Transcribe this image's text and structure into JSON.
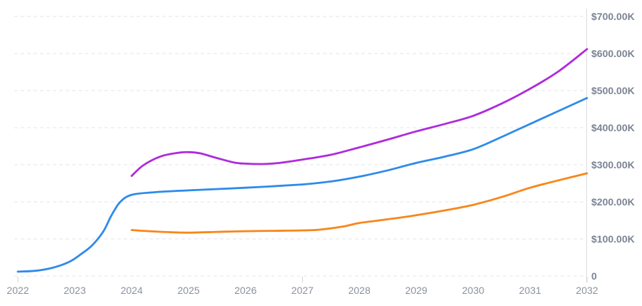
{
  "chart_data": {
    "type": "line",
    "title": "",
    "legend": "none",
    "grid": "horizontal dashed gridlines only",
    "y_axis": {
      "side": "right",
      "labels": [
        "$700.00K",
        "$600.00K",
        "$500.00K",
        "$400.00K",
        "$300.00K",
        "$200.00K",
        "$100.00K",
        "0"
      ],
      "values": [
        700000,
        600000,
        500000,
        400000,
        300000,
        200000,
        100000,
        0
      ],
      "lim": [
        0,
        700000
      ],
      "label_color": "#7c8494"
    },
    "x_axis": {
      "labels": [
        "2022",
        "2023",
        "2024",
        "2025",
        "2026",
        "2027",
        "2028",
        "2029",
        "2030",
        "2031",
        "2032"
      ],
      "values": [
        2022,
        2023,
        2024,
        2025,
        2026,
        2027,
        2028,
        2029,
        2030,
        2031,
        2032
      ],
      "major_ticks": [
        2022,
        2027,
        2032
      ],
      "lim": [
        2022,
        2032
      ],
      "label_color": "#8b919e"
    },
    "series": [
      {
        "name": "orange-line",
        "color": "#f8861b",
        "points": [
          [
            2024,
            124000
          ],
          [
            2024.3,
            121000
          ],
          [
            2024.7,
            118000
          ],
          [
            2025,
            117000
          ],
          [
            2025.5,
            119000
          ],
          [
            2026,
            121000
          ],
          [
            2026.5,
            122000
          ],
          [
            2027,
            123000
          ],
          [
            2027.3,
            125000
          ],
          [
            2027.7,
            133000
          ],
          [
            2028,
            143000
          ],
          [
            2028.5,
            153000
          ],
          [
            2029,
            164000
          ],
          [
            2029.5,
            177000
          ],
          [
            2030,
            192000
          ],
          [
            2030.5,
            213000
          ],
          [
            2031,
            238000
          ],
          [
            2031.5,
            258000
          ],
          [
            2032,
            277000
          ]
        ]
      },
      {
        "name": "blue-line",
        "color": "#2e8be9",
        "points": [
          [
            2022,
            12000
          ],
          [
            2022.3,
            14000
          ],
          [
            2022.6,
            22000
          ],
          [
            2022.9,
            38000
          ],
          [
            2023.1,
            58000
          ],
          [
            2023.3,
            82000
          ],
          [
            2023.5,
            120000
          ],
          [
            2023.65,
            165000
          ],
          [
            2023.8,
            200000
          ],
          [
            2024,
            219000
          ],
          [
            2024.4,
            226000
          ],
          [
            2025,
            231000
          ],
          [
            2026,
            238000
          ],
          [
            2027,
            247000
          ],
          [
            2027.5,
            255000
          ],
          [
            2028,
            268000
          ],
          [
            2028.5,
            285000
          ],
          [
            2029,
            305000
          ],
          [
            2029.5,
            322000
          ],
          [
            2030,
            342000
          ],
          [
            2030.5,
            375000
          ],
          [
            2031,
            410000
          ],
          [
            2031.5,
            445000
          ],
          [
            2032,
            480000
          ]
        ]
      },
      {
        "name": "purple-line",
        "color": "#ae2bdb",
        "points": [
          [
            2024,
            270000
          ],
          [
            2024.2,
            298000
          ],
          [
            2024.5,
            322000
          ],
          [
            2024.8,
            332000
          ],
          [
            2025,
            334000
          ],
          [
            2025.2,
            331000
          ],
          [
            2025.5,
            318000
          ],
          [
            2025.8,
            306000
          ],
          [
            2026,
            303000
          ],
          [
            2026.3,
            302000
          ],
          [
            2026.6,
            305000
          ],
          [
            2027,
            314000
          ],
          [
            2027.5,
            327000
          ],
          [
            2028,
            347000
          ],
          [
            2028.5,
            368000
          ],
          [
            2029,
            390000
          ],
          [
            2029.5,
            410000
          ],
          [
            2030,
            432000
          ],
          [
            2030.5,
            465000
          ],
          [
            2031,
            505000
          ],
          [
            2031.5,
            552000
          ],
          [
            2032,
            612000
          ]
        ]
      }
    ],
    "annual_values_usd": {
      "blue-line": {
        "2022": 12000,
        "2023": 45000,
        "2024": 219000,
        "2025": 231000,
        "2026": 238000,
        "2027": 247000,
        "2028": 268000,
        "2029": 305000,
        "2030": 342000,
        "2031": 410000,
        "2032": 480000
      },
      "purple-line": {
        "2024": 270000,
        "2025": 334000,
        "2026": 303000,
        "2027": 314000,
        "2028": 347000,
        "2029": 390000,
        "2030": 432000,
        "2031": 505000,
        "2032": 612000
      },
      "orange-line": {
        "2024": 124000,
        "2025": 117000,
        "2026": 121000,
        "2027": 123000,
        "2028": 143000,
        "2029": 164000,
        "2030": 192000,
        "2031": 238000,
        "2032": 277000
      }
    }
  },
  "colors": {
    "background": "#ffffff",
    "gridline": "#e7e9ee",
    "axis_line": "#dbdde2",
    "tick_mark": "#cfd2d9"
  }
}
